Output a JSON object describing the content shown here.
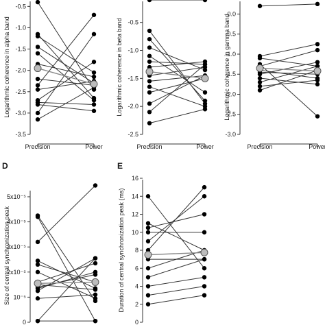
{
  "chart_data": [
    {
      "panel": "A",
      "panel_label": "",
      "type": "paired-dot",
      "categories": [
        "Precision",
        "Power"
      ],
      "ylabel": "Logarithmic coherence in alpha band",
      "yticks": [
        "-0.5",
        "-1.0",
        "-1.5",
        "-2.0",
        "-2.5",
        "-3.0",
        "-3.5"
      ],
      "ylim": [
        -3.5,
        -0.35
      ],
      "pairs": [
        [
          -0.4,
          -2.45
        ],
        [
          -1.15,
          -2.65
        ],
        [
          -1.2,
          -2.05
        ],
        [
          -1.45,
          -2.3
        ],
        [
          -1.6,
          -2.7
        ],
        [
          -1.85,
          -2.15
        ],
        [
          -2.2,
          -2.35
        ],
        [
          -2.45,
          -2.25
        ],
        [
          -2.7,
          -1.8
        ],
        [
          -2.8,
          -2.95
        ],
        [
          -2.35,
          -0.7
        ],
        [
          -3.0,
          -1.15
        ],
        [
          -3.15,
          -2.4
        ],
        [
          -2.75,
          -2.8
        ]
      ],
      "mean": [
        -1.95,
        -2.32
      ]
    },
    {
      "panel": "B",
      "panel_label": "",
      "type": "paired-dot",
      "categories": [
        "Precision",
        "Power"
      ],
      "ylabel": "Logarithmic coherence in beta band",
      "yticks": [
        "-0.5",
        "-1.0",
        "-1.5",
        "-2.0",
        "-2.5"
      ],
      "ylim": [
        -2.5,
        -0.1
      ],
      "pairs": [
        [
          -0.1,
          -0.1
        ],
        [
          -0.65,
          -1.95
        ],
        [
          -0.8,
          -1.9
        ],
        [
          -0.95,
          -1.35
        ],
        [
          -1.1,
          -1.75
        ],
        [
          -1.2,
          -1.25
        ],
        [
          -1.3,
          -1.2
        ],
        [
          -1.45,
          -1.3
        ],
        [
          -1.55,
          -1.45
        ],
        [
          -1.75,
          -1.5
        ],
        [
          -1.95,
          -1.45
        ],
        [
          -2.1,
          -1.25
        ],
        [
          -2.3,
          -2.05
        ],
        [
          -1.65,
          -2.0
        ]
      ],
      "mean": [
        -1.38,
        -1.5
      ]
    },
    {
      "panel": "C",
      "panel_label": "",
      "type": "paired-dot",
      "categories": [
        "Precision",
        "Power"
      ],
      "ylabel": "Logarithmic coherence in gamma band",
      "yticks": [
        "0.0",
        "-0.5",
        "-1.0",
        "-1.5",
        "-2.0",
        "-2.5",
        "-3.0"
      ],
      "ylim": [
        -3.0,
        0.35
      ],
      "pairs": [
        [
          0.2,
          0.25
        ],
        [
          -1.05,
          -0.75
        ],
        [
          -1.1,
          -1.3
        ],
        [
          -1.3,
          -0.9
        ],
        [
          -1.4,
          -1.6
        ],
        [
          -1.45,
          -1.5
        ],
        [
          -1.5,
          -1.2
        ],
        [
          -1.6,
          -1.75
        ],
        [
          -1.7,
          -1.3
        ],
        [
          -1.8,
          -1.65
        ],
        [
          -1.9,
          -1.4
        ],
        [
          -1.25,
          -2.55
        ]
      ],
      "mean": [
        -1.35,
        -1.42
      ]
    },
    {
      "panel": "D",
      "panel_label": "D",
      "type": "paired-dot",
      "categories": [
        "Precision",
        "Power"
      ],
      "ylabel": "Size of central synchronization peak",
      "yticks": [
        "5x10⁻⁵",
        "4x10⁻⁵",
        "3x10⁻⁵",
        "2x10⁻⁵",
        "10⁻⁵",
        "0"
      ],
      "ylim": [
        0,
        5.3
      ],
      "pairs": [
        [
          4.25,
          0.85
        ],
        [
          4.2,
          0.05
        ],
        [
          3.2,
          5.45
        ],
        [
          2.45,
          1.35
        ],
        [
          2.3,
          1.6
        ],
        [
          2.0,
          0.95
        ],
        [
          1.6,
          2.35
        ],
        [
          1.5,
          1.3
        ],
        [
          1.4,
          1.9
        ],
        [
          1.35,
          2.0
        ],
        [
          1.25,
          2.55
        ],
        [
          0.95,
          1.1
        ],
        [
          0.05,
          2.55
        ],
        [
          0.05,
          0.05
        ]
      ],
      "mean": [
        1.55,
        1.6
      ]
    },
    {
      "panel": "E",
      "panel_label": "E",
      "type": "paired-dot",
      "categories": [
        "Precision",
        "Power"
      ],
      "ylabel": "Duration of central synchronization peak (ms)",
      "yticks": [
        "16",
        "14",
        "12",
        "10",
        "8",
        "6",
        "4",
        "2",
        "0"
      ],
      "ylim": [
        0,
        16
      ],
      "pairs": [
        [
          14,
          6
        ],
        [
          11,
          8
        ],
        [
          10.5,
          12
        ],
        [
          10,
          10
        ],
        [
          9,
          14
        ],
        [
          8,
          15
        ],
        [
          7,
          7
        ],
        [
          5,
          7
        ],
        [
          4,
          5
        ],
        [
          3,
          4
        ],
        [
          2,
          3
        ],
        [
          6,
          8
        ]
      ],
      "mean": [
        7.5,
        7.75
      ]
    }
  ]
}
